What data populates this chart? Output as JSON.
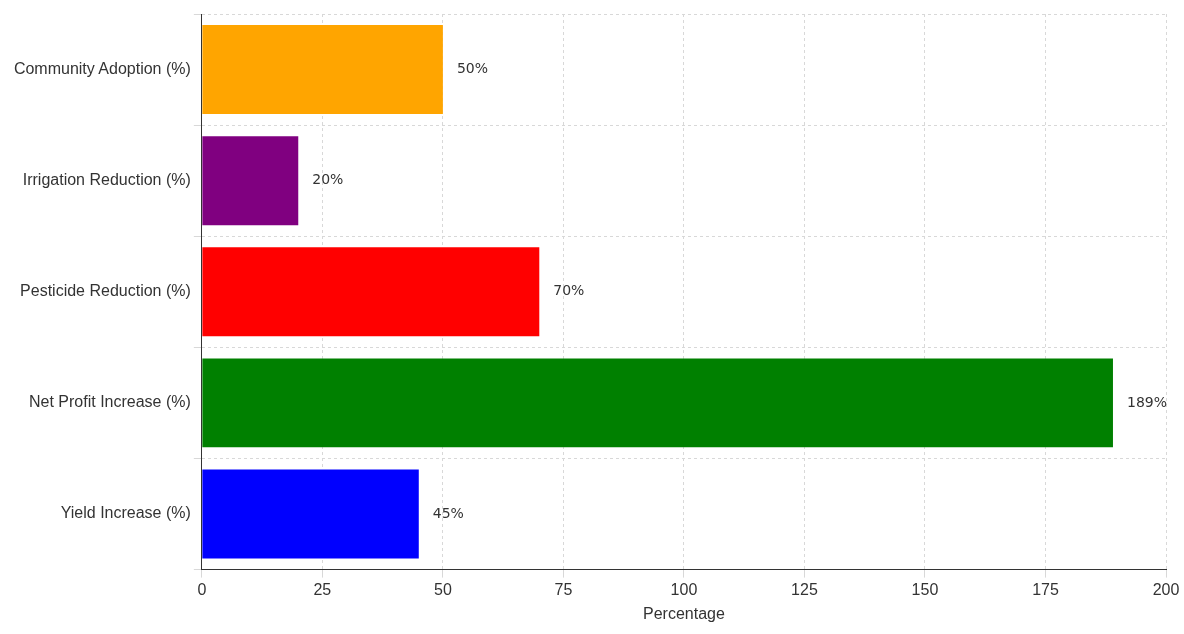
{
  "chart_data": {
    "type": "bar",
    "orientation": "horizontal",
    "categories": [
      "Community Adoption (%)",
      "Irrigation Reduction (%)",
      "Pesticide Reduction (%)",
      "Net Profit Increase (%)",
      "Yield Increase (%)"
    ],
    "values": [
      50,
      20,
      70,
      189,
      45
    ],
    "colors": [
      "#ffa500",
      "#800080",
      "#ff0000",
      "#008000",
      "#0000ff"
    ],
    "value_labels": [
      "50%",
      "20%",
      "70%",
      "189%",
      "45%"
    ],
    "xlabel": "Percentage",
    "xlim": [
      0,
      200
    ],
    "xticks": [
      0,
      25,
      50,
      75,
      100,
      125,
      150,
      175,
      200
    ],
    "grid": true
  }
}
